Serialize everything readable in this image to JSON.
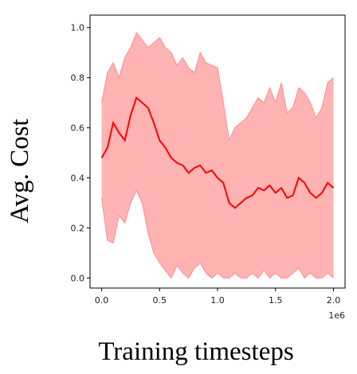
{
  "chart_data": {
    "type": "line",
    "title": "",
    "xlabel": "Training timesteps",
    "ylabel": "Avg. Cost",
    "x_multiplier_label": "1e6",
    "xlim": [
      -0.1,
      2.1
    ],
    "ylim": [
      -0.04,
      1.05
    ],
    "x_ticks": [
      0.0,
      0.5,
      1.0,
      1.5,
      2.0
    ],
    "x_tick_labels": [
      "0.0",
      "0.5",
      "1.0",
      "1.5",
      "2.0"
    ],
    "y_ticks": [
      0.0,
      0.2,
      0.4,
      0.6,
      0.8,
      1.0
    ],
    "y_tick_labels": [
      "0.0",
      "0.2",
      "0.4",
      "0.6",
      "0.8",
      "1.0"
    ],
    "grid": false,
    "legend": "none",
    "colors": {
      "line": "#ff0000",
      "band": "#ffb3b3",
      "band_edge": "#ff8c8c"
    },
    "series": [
      {
        "x": [
          0.0,
          0.05,
          0.1,
          0.15,
          0.2,
          0.25,
          0.3,
          0.35,
          0.4,
          0.45,
          0.5,
          0.55,
          0.6,
          0.65,
          0.7,
          0.75,
          0.8,
          0.85,
          0.9,
          0.95,
          1.0,
          1.05,
          1.1,
          1.15,
          1.2,
          1.25,
          1.3,
          1.35,
          1.4,
          1.45,
          1.5,
          1.55,
          1.6,
          1.65,
          1.7,
          1.75,
          1.8,
          1.85,
          1.9,
          1.95,
          2.0
        ],
        "mean": [
          0.48,
          0.52,
          0.62,
          0.58,
          0.55,
          0.65,
          0.72,
          0.7,
          0.68,
          0.62,
          0.55,
          0.52,
          0.48,
          0.46,
          0.45,
          0.42,
          0.44,
          0.45,
          0.42,
          0.43,
          0.4,
          0.38,
          0.3,
          0.28,
          0.3,
          0.32,
          0.33,
          0.36,
          0.35,
          0.37,
          0.34,
          0.36,
          0.32,
          0.33,
          0.4,
          0.38,
          0.34,
          0.32,
          0.34,
          0.38,
          0.36
        ],
        "upper": [
          0.7,
          0.82,
          0.86,
          0.8,
          0.88,
          0.92,
          0.98,
          0.95,
          0.92,
          0.94,
          0.96,
          0.92,
          0.9,
          0.85,
          0.88,
          0.84,
          0.82,
          0.9,
          0.86,
          0.85,
          0.84,
          0.7,
          0.55,
          0.6,
          0.62,
          0.64,
          0.68,
          0.72,
          0.7,
          0.76,
          0.7,
          0.78,
          0.66,
          0.68,
          0.76,
          0.74,
          0.7,
          0.64,
          0.68,
          0.78,
          0.8
        ],
        "lower": [
          0.32,
          0.15,
          0.14,
          0.25,
          0.22,
          0.3,
          0.35,
          0.3,
          0.18,
          0.1,
          0.06,
          0.03,
          0.0,
          0.05,
          0.02,
          0.0,
          0.04,
          0.06,
          0.02,
          0.0,
          0.02,
          0.0,
          0.0,
          0.02,
          0.0,
          0.0,
          0.02,
          0.0,
          0.03,
          0.0,
          0.02,
          0.0,
          0.0,
          0.02,
          0.04,
          0.0,
          0.02,
          0.0,
          0.0,
          0.02,
          0.0
        ]
      }
    ]
  }
}
